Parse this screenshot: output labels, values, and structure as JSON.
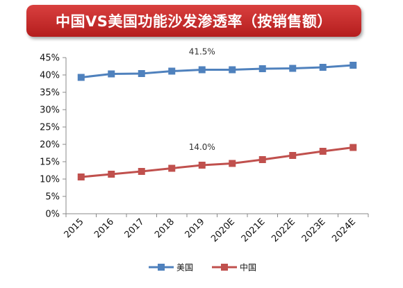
{
  "title": "中国VS美国功能沙发渗透率（按销售额）",
  "chart_data": {
    "type": "line",
    "title": "中国VS美国功能沙发渗透率（按销售额）",
    "categories": [
      "2015",
      "2016",
      "2017",
      "2018",
      "2019",
      "2020E",
      "2021E",
      "2022E",
      "2023E",
      "2024E"
    ],
    "series": [
      {
        "name": "美国",
        "color": "#4f81bd",
        "values": [
          39.3,
          40.3,
          40.4,
          41.1,
          41.5,
          41.5,
          41.8,
          41.9,
          42.2,
          42.8
        ]
      },
      {
        "name": "中国",
        "color": "#c0504d",
        "values": [
          10.6,
          11.4,
          12.2,
          13.1,
          14.0,
          14.5,
          15.6,
          16.8,
          18.0,
          19.1
        ]
      }
    ],
    "annotations": [
      {
        "series": 0,
        "index": 4,
        "text": "41.5%"
      },
      {
        "series": 1,
        "index": 4,
        "text": "14.0%"
      }
    ],
    "y_ticks": [
      "0%",
      "5%",
      "10%",
      "15%",
      "20%",
      "25%",
      "30%",
      "35%",
      "40%",
      "45%"
    ],
    "ylim": [
      0,
      45
    ],
    "xlabel": "",
    "ylabel": "",
    "grid": false,
    "legend_position": "bottom"
  }
}
